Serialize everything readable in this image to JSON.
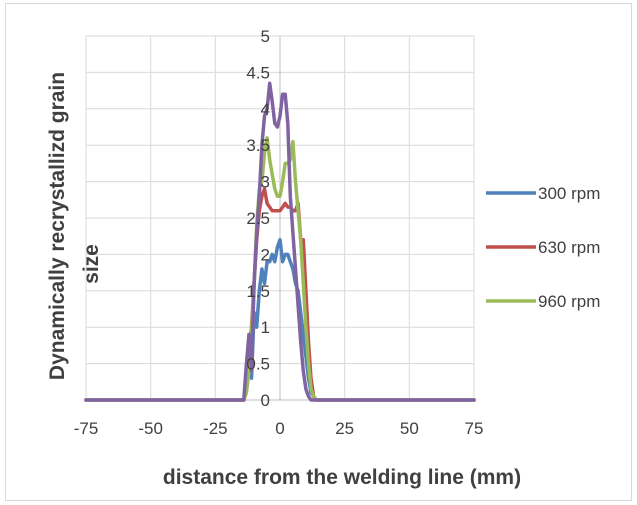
{
  "chart_data": {
    "type": "line",
    "title": "",
    "xlabel": "distance from the welding line (mm)",
    "ylabel_lines": [
      "Dynamically recrystallizd grain",
      "size"
    ],
    "xlim": [
      -75,
      75
    ],
    "ylim": [
      0,
      5
    ],
    "x_ticks": [
      -75,
      -50,
      -25,
      0,
      25,
      50,
      75
    ],
    "y_ticks": [
      0,
      0.5,
      1,
      1.5,
      2,
      2.5,
      3,
      3.5,
      4,
      4.5,
      5
    ],
    "grid": true,
    "legend_position": "right",
    "series": [
      {
        "name": "300 rpm",
        "color": "#4f81bd",
        "x": [
          -75,
          -14,
          -13,
          -12,
          -11,
          -10,
          -9,
          -8,
          -7,
          -6,
          -5,
          -4,
          -3,
          -2,
          -1,
          0,
          1,
          2,
          3,
          4,
          5,
          6,
          7,
          8,
          9,
          10,
          11,
          12,
          13,
          14,
          75
        ],
        "y": [
          0,
          0,
          0.4,
          0.9,
          0.3,
          1.2,
          1.0,
          1.5,
          1.8,
          1.6,
          1.9,
          1.9,
          2.0,
          1.9,
          2.1,
          2.2,
          1.9,
          2.0,
          2.0,
          1.9,
          1.8,
          1.6,
          1.5,
          1.2,
          0.9,
          0.6,
          0.3,
          0.1,
          0.05,
          0,
          0
        ]
      },
      {
        "name": "630 rpm",
        "color": "#c0504d",
        "x": [
          -75,
          -14,
          -13,
          -12,
          -11,
          -10,
          -9,
          -8,
          -7,
          -6,
          -5,
          -4,
          -3,
          -2,
          -1,
          0,
          1,
          2,
          3,
          4,
          5,
          6,
          7,
          8,
          9,
          10,
          11,
          12,
          13,
          14,
          75
        ],
        "y": [
          0,
          0,
          0.2,
          0.6,
          1.0,
          1.6,
          2.2,
          2.6,
          2.8,
          2.9,
          2.7,
          2.65,
          2.6,
          2.6,
          2.6,
          2.6,
          2.65,
          2.7,
          2.65,
          2.65,
          2.6,
          2.6,
          2.7,
          2.2,
          2.2,
          1.5,
          0.8,
          0.3,
          0.05,
          0,
          0
        ]
      },
      {
        "name": "960 rpm",
        "color": "#9bbb59",
        "x": [
          -75,
          -14,
          -13,
          -12,
          -11,
          -10,
          -9,
          -8,
          -7,
          -6,
          -5,
          -4,
          -3,
          -2,
          -1,
          0,
          1,
          2,
          3,
          4,
          5,
          6,
          7,
          8,
          9,
          10,
          11,
          12,
          13,
          14,
          75
        ],
        "y": [
          0,
          0,
          0.1,
          0.4,
          0.9,
          1.6,
          2.4,
          2.9,
          3.0,
          3.4,
          3.6,
          3.3,
          3.1,
          2.9,
          2.8,
          2.8,
          3.0,
          3.25,
          3.25,
          3.3,
          3.55,
          3.0,
          2.6,
          2.2,
          1.6,
          1.0,
          0.5,
          0.15,
          0.05,
          0,
          0
        ]
      },
      {
        "name": "",
        "color": "#8064a2",
        "x": [
          -75,
          -14,
          -13,
          -12,
          -11,
          -10,
          -9,
          -8,
          -7,
          -6,
          -5,
          -4,
          -3,
          -2,
          -1,
          0,
          1,
          2,
          3,
          4,
          5,
          6,
          7,
          8,
          9,
          10,
          11,
          12,
          13,
          14,
          75
        ],
        "y": [
          0,
          0,
          0.5,
          0.9,
          0.4,
          1.6,
          2.3,
          2.8,
          3.5,
          3.9,
          4.0,
          4.35,
          4.1,
          3.8,
          3.75,
          3.9,
          4.2,
          4.2,
          3.8,
          2.8,
          2.3,
          1.8,
          1.3,
          0.8,
          0.4,
          0.15,
          0.05,
          0,
          0,
          0,
          0
        ]
      }
    ]
  }
}
